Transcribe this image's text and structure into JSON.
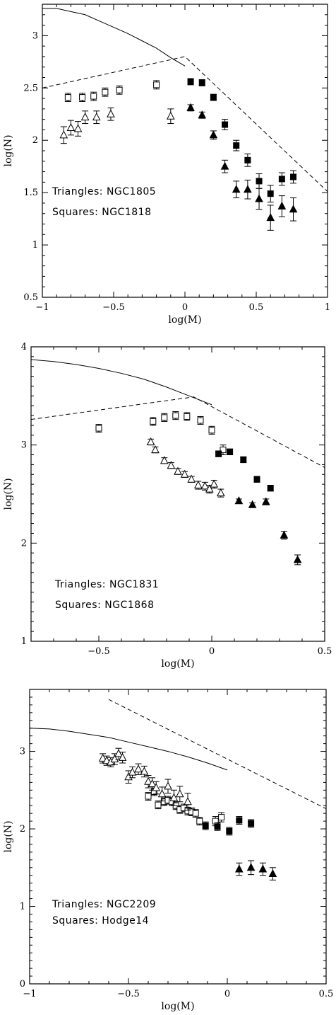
{
  "chart_data": [
    {
      "type": "scatter",
      "xlabel": "log(M)",
      "ylabel": "log(N)",
      "xlim": [
        -1,
        1
      ],
      "ylim": [
        0.5,
        3.3
      ],
      "xticks": [
        -1,
        -0.5,
        0,
        0.5,
        1
      ],
      "xtick_labels": [
        "−1",
        "−0.5",
        "0",
        "0.5",
        "1"
      ],
      "yticks": [
        0.5,
        1,
        1.5,
        2,
        2.5,
        3
      ],
      "ytick_labels": [
        "0.5",
        "1",
        "1.5",
        "2",
        "2.5",
        "3"
      ],
      "annotations": [
        "Triangles: NGC1805",
        "Squares: NGC1818"
      ],
      "series": [
        {
          "marker": "square-open",
          "x": [
            -0.82,
            -0.72,
            -0.64,
            -0.56,
            -0.46,
            -0.2
          ],
          "y": [
            2.41,
            2.41,
            2.42,
            2.46,
            2.48,
            2.53
          ],
          "err": [
            0.04,
            0.04,
            0.04,
            0.04,
            0.04,
            0.04
          ]
        },
        {
          "marker": "square-filled",
          "x": [
            0.04,
            0.12,
            0.2,
            0.28,
            0.36,
            0.44,
            0.52,
            0.6,
            0.68,
            0.76
          ],
          "y": [
            2.56,
            2.55,
            2.41,
            2.15,
            1.95,
            1.81,
            1.61,
            1.49,
            1.63,
            1.65
          ],
          "err": [
            0.03,
            0.03,
            0.03,
            0.05,
            0.05,
            0.06,
            0.07,
            0.08,
            0.06,
            0.06
          ]
        },
        {
          "marker": "triangle-open",
          "x": [
            -0.85,
            -0.8,
            -0.75,
            -0.7,
            -0.62,
            -0.52,
            -0.1
          ],
          "y": [
            2.05,
            2.12,
            2.11,
            2.22,
            2.22,
            2.25,
            2.23
          ],
          "err": [
            0.08,
            0.07,
            0.07,
            0.06,
            0.06,
            0.06,
            0.07
          ]
        },
        {
          "marker": "triangle-filled",
          "x": [
            0.04,
            0.12,
            0.2,
            0.28,
            0.36,
            0.44,
            0.52,
            0.6,
            0.68,
            0.76
          ],
          "y": [
            2.31,
            2.24,
            2.05,
            1.75,
            1.53,
            1.53,
            1.44,
            1.26,
            1.37,
            1.34
          ],
          "err": [
            0.03,
            0.03,
            0.04,
            0.06,
            0.08,
            0.09,
            0.1,
            0.12,
            0.1,
            0.11
          ]
        }
      ],
      "lines": [
        {
          "style": "solid",
          "x": [
            -1,
            -0.9,
            -0.8,
            -0.7,
            -0.6,
            -0.5,
            -0.4,
            -0.3,
            -0.2,
            -0.1,
            0.0
          ],
          "y": [
            3.26,
            3.26,
            3.23,
            3.2,
            3.14,
            3.08,
            3.02,
            2.95,
            2.88,
            2.79,
            2.71
          ]
        },
        {
          "style": "dashed",
          "x": [
            -1,
            0,
            1
          ],
          "y": [
            2.5,
            2.8,
            1.51
          ]
        }
      ]
    },
    {
      "type": "scatter",
      "xlabel": "log(M)",
      "ylabel": "log(N)",
      "xlim": [
        -0.8,
        0.5
      ],
      "ylim": [
        1,
        4
      ],
      "xticks": [
        -0.5,
        0,
        0.5
      ],
      "xtick_labels": [
        "−0.5",
        "0",
        "0.5"
      ],
      "yticks": [
        1,
        2,
        3,
        4
      ],
      "ytick_labels": [
        "1",
        "2",
        "3",
        "4"
      ],
      "annotations": [
        "Triangles: NGC1831",
        "Squares: NGC1868"
      ],
      "series": [
        {
          "marker": "square-open",
          "x": [
            -0.5,
            -0.26,
            -0.21,
            -0.16,
            -0.11,
            -0.05,
            0.0,
            0.05
          ],
          "y": [
            3.17,
            3.24,
            3.28,
            3.3,
            3.29,
            3.25,
            3.15,
            2.95
          ],
          "err": [
            0.04,
            0.04,
            0.04,
            0.04,
            0.04,
            0.04,
            0.04,
            0.05
          ]
        },
        {
          "marker": "square-filled",
          "x": [
            0.03,
            0.08,
            0.14,
            0.2,
            0.26
          ],
          "y": [
            2.91,
            2.93,
            2.85,
            2.65,
            2.56
          ],
          "err": [
            0.03,
            0.03,
            0.03,
            0.03,
            0.03
          ]
        },
        {
          "marker": "triangle-open",
          "x": [
            -0.27,
            -0.25,
            -0.21,
            -0.18,
            -0.15,
            -0.12,
            -0.09,
            -0.06,
            -0.03,
            -0.01,
            0.01,
            0.04
          ],
          "y": [
            3.03,
            2.95,
            2.84,
            2.79,
            2.73,
            2.7,
            2.65,
            2.59,
            2.58,
            2.55,
            2.6,
            2.51
          ],
          "err": [
            0.03,
            0.03,
            0.03,
            0.03,
            0.03,
            0.03,
            0.03,
            0.04,
            0.04,
            0.04,
            0.04,
            0.04
          ]
        },
        {
          "marker": "triangle-filled",
          "x": [
            0.12,
            0.18,
            0.24,
            0.32,
            0.38
          ],
          "y": [
            2.43,
            2.39,
            2.42,
            2.08,
            1.83
          ],
          "err": [
            0.02,
            0.02,
            0.03,
            0.04,
            0.05
          ]
        }
      ],
      "lines": [
        {
          "style": "solid",
          "x": [
            -0.8,
            -0.7,
            -0.6,
            -0.5,
            -0.4,
            -0.3,
            -0.2,
            -0.1,
            0.0
          ],
          "y": [
            3.87,
            3.85,
            3.82,
            3.78,
            3.73,
            3.67,
            3.59,
            3.5,
            3.41
          ]
        },
        {
          "style": "dashed",
          "x": [
            -0.8,
            -0.08,
            0.5
          ],
          "y": [
            3.26,
            3.49,
            2.77
          ]
        }
      ]
    },
    {
      "type": "scatter",
      "xlabel": "log(M)",
      "ylabel": "log(N)",
      "xlim": [
        -1,
        0.5
      ],
      "ylim": [
        0,
        3.8
      ],
      "xticks": [
        -1,
        -0.5,
        0,
        0.5
      ],
      "xtick_labels": [
        "−1",
        "−0.5",
        "0",
        "0.5"
      ],
      "yticks": [
        0,
        1,
        2,
        3
      ],
      "ytick_labels": [
        "0",
        "1",
        "2",
        "3"
      ],
      "annotations": [
        "Triangles: NGC2209",
        "Squares: Hodge14"
      ],
      "series": [
        {
          "marker": "square-open",
          "x": [
            -0.4,
            -0.37,
            -0.35,
            -0.32,
            -0.3,
            -0.28,
            -0.26,
            -0.24,
            -0.22,
            -0.2,
            -0.18,
            -0.16,
            -0.14,
            -0.06,
            -0.03
          ],
          "y": [
            2.42,
            2.48,
            2.31,
            2.35,
            2.37,
            2.35,
            2.3,
            2.25,
            2.27,
            2.23,
            2.22,
            2.2,
            2.1,
            2.1,
            2.15
          ],
          "err": [
            0.05,
            0.05,
            0.05,
            0.05,
            0.05,
            0.05,
            0.05,
            0.05,
            0.05,
            0.05,
            0.05,
            0.05,
            0.05,
            0.06,
            0.06
          ]
        },
        {
          "marker": "square-filled",
          "x": [
            -0.11,
            -0.05,
            0.01,
            0.06,
            0.12
          ],
          "y": [
            2.04,
            2.03,
            1.97,
            2.11,
            2.07
          ],
          "err": [
            0.05,
            0.05,
            0.05,
            0.05,
            0.05
          ]
        },
        {
          "marker": "triangle-open",
          "x": [
            -0.63,
            -0.61,
            -0.59,
            -0.57,
            -0.55,
            -0.53,
            -0.5,
            -0.48,
            -0.45,
            -0.42,
            -0.4,
            -0.38,
            -0.36,
            -0.33,
            -0.3,
            -0.27,
            -0.24,
            -0.2
          ],
          "y": [
            2.91,
            2.88,
            2.86,
            2.9,
            2.97,
            2.92,
            2.67,
            2.73,
            2.77,
            2.74,
            2.61,
            2.58,
            2.53,
            2.45,
            2.55,
            2.4,
            2.45,
            2.35
          ],
          "err": [
            0.06,
            0.06,
            0.06,
            0.07,
            0.07,
            0.07,
            0.08,
            0.07,
            0.07,
            0.07,
            0.08,
            0.08,
            0.08,
            0.09,
            0.09,
            0.1,
            0.1,
            0.11
          ]
        },
        {
          "marker": "triangle-filled",
          "x": [
            0.06,
            0.12,
            0.18,
            0.23
          ],
          "y": [
            1.48,
            1.5,
            1.48,
            1.42
          ],
          "err": [
            0.08,
            0.09,
            0.08,
            0.08
          ]
        }
      ],
      "lines": [
        {
          "style": "solid",
          "x": [
            -1,
            -0.9,
            -0.8,
            -0.7,
            -0.6,
            -0.5,
            -0.4,
            -0.3,
            -0.2,
            -0.1,
            0.0
          ],
          "y": [
            3.3,
            3.29,
            3.26,
            3.22,
            3.18,
            3.12,
            3.06,
            3.0,
            2.93,
            2.85,
            2.76
          ]
        },
        {
          "style": "dashed",
          "x": [
            -0.6,
            0.5
          ],
          "y": [
            3.67,
            2.26
          ]
        }
      ]
    }
  ]
}
